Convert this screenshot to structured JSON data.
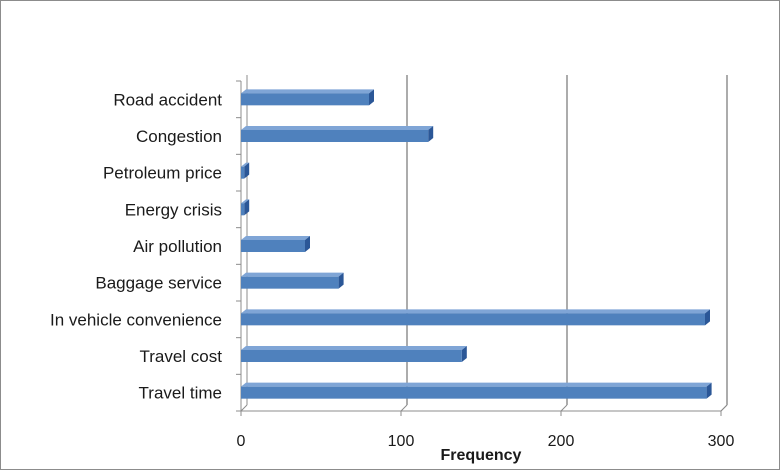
{
  "chart_data": {
    "type": "bar",
    "orientation": "horizontal",
    "style": "3d-clustered-bar",
    "categories": [
      "Road accident",
      "Congestion",
      "Petroleum price",
      "Energy crisis",
      "Air pollution",
      "Baggage service",
      "In vehicle convenience",
      "Travel cost",
      "Travel time"
    ],
    "values": [
      80,
      117,
      2,
      2,
      40,
      61,
      290,
      138,
      291
    ],
    "xlabel": "Frequency",
    "ylabel": "",
    "xlim": [
      0,
      300
    ],
    "x_ticks": [
      0,
      100,
      200,
      300
    ],
    "x_tick_labels": [
      "0",
      "100",
      "200",
      "300"
    ],
    "grid": "vertical",
    "legend": "none",
    "colors": {
      "bar_front": "#4f81bd",
      "bar_top": "#7fa5d6",
      "bar_side": "#2b5797",
      "gridline": "#595959",
      "axis": "#8c8c8c"
    }
  }
}
